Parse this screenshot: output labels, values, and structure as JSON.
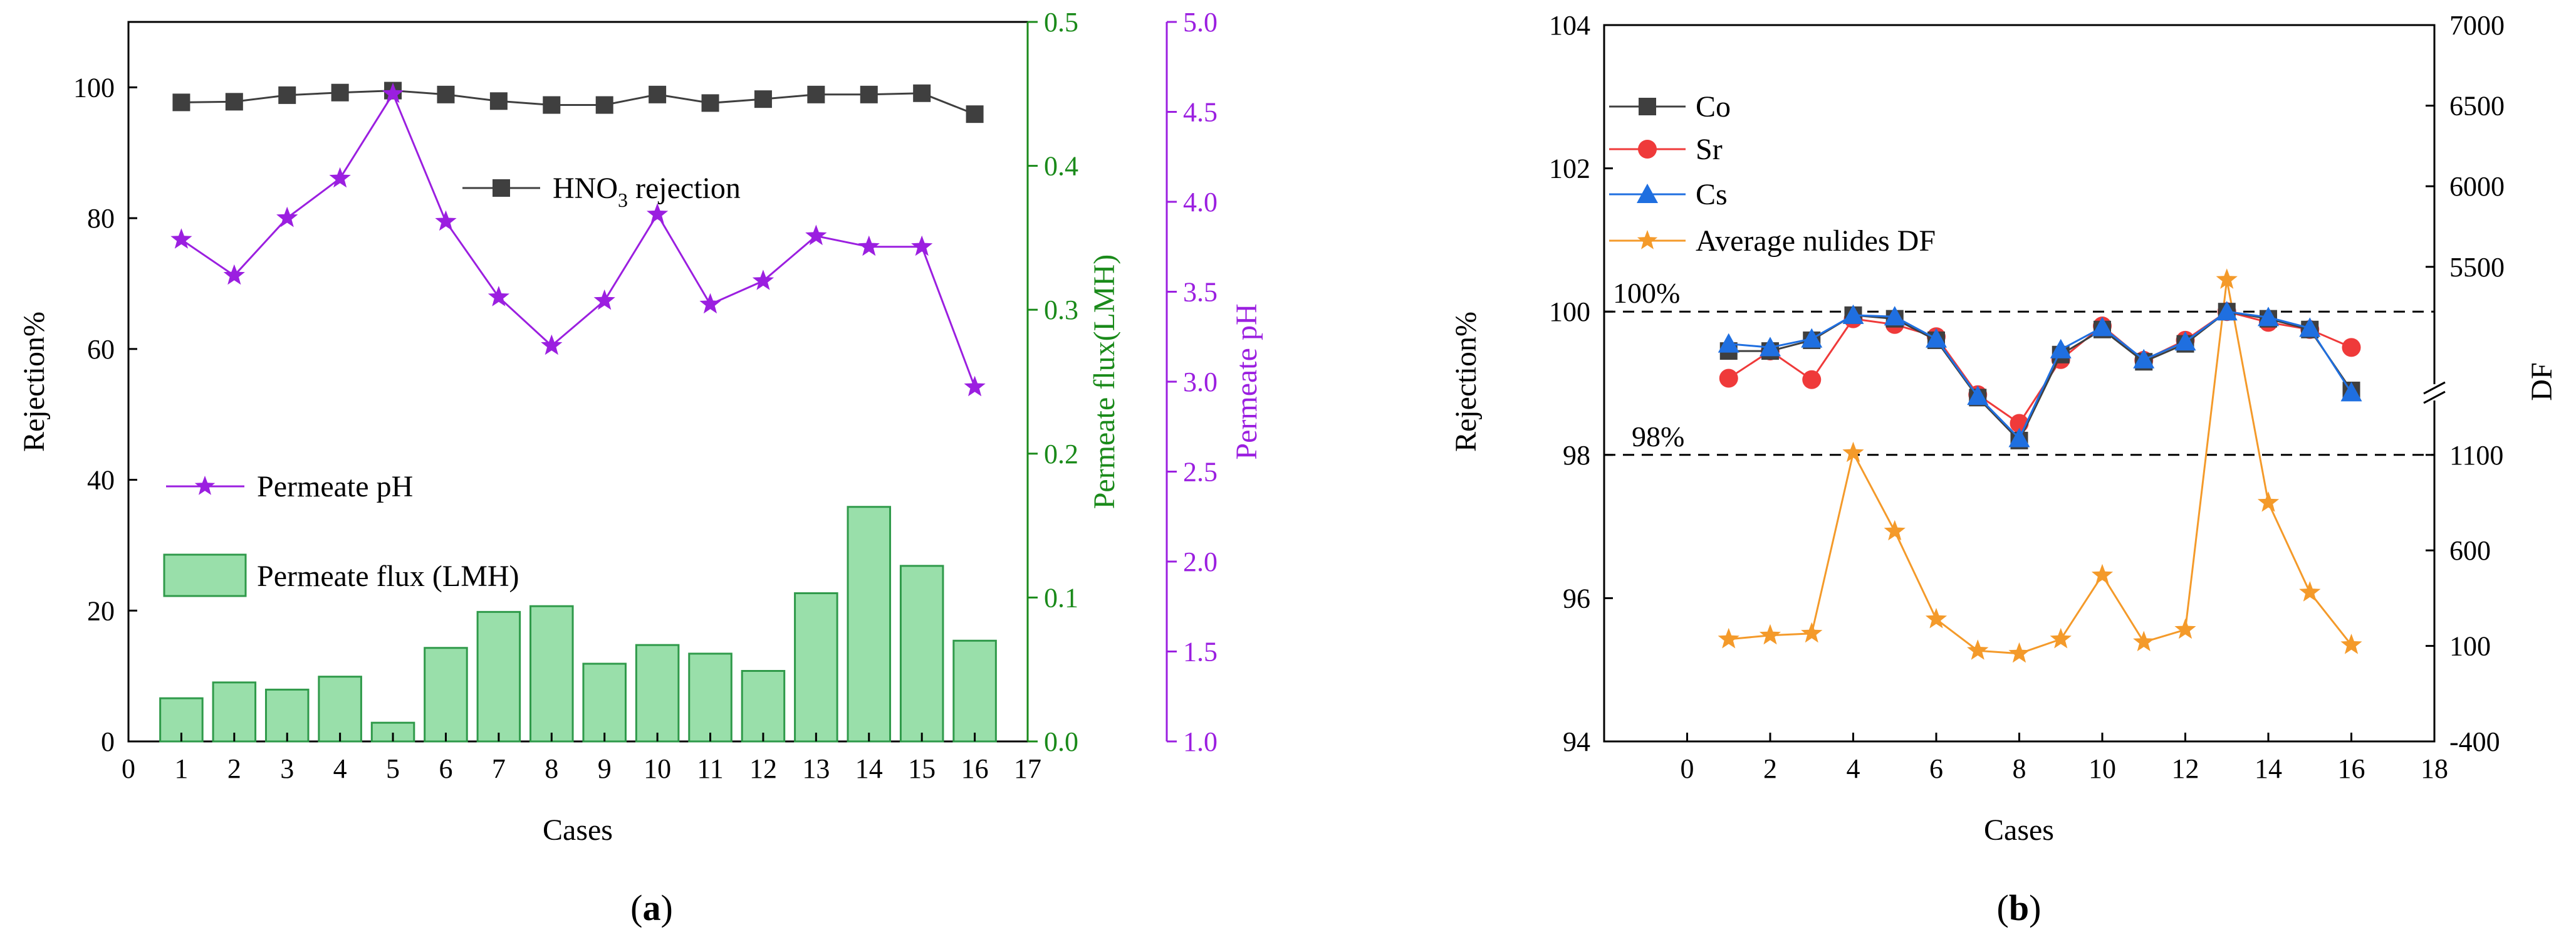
{
  "chart_data": [
    {
      "panel_label": "(a)",
      "type": "bar+line",
      "xlabel": "Cases",
      "x_ticks": [
        "0",
        "1",
        "2",
        "3",
        "4",
        "5",
        "6",
        "7",
        "8",
        "9",
        "10",
        "11",
        "12",
        "13",
        "14",
        "15",
        "16",
        "17"
      ],
      "xlim": [
        0,
        17
      ],
      "categories": [
        1,
        2,
        3,
        4,
        5,
        6,
        7,
        8,
        9,
        10,
        11,
        12,
        13,
        14,
        15,
        16
      ],
      "axes": {
        "left": {
          "label": "Rejection%",
          "range": [
            0,
            110
          ],
          "ticks": [
            0,
            20,
            40,
            60,
            80,
            100
          ],
          "color": "#000000"
        },
        "right1": {
          "label": "Permeate flux(LMH)",
          "range": [
            0,
            0.5
          ],
          "ticks": [
            "0.0",
            "0.1",
            "0.2",
            "0.3",
            "0.4",
            "0.5"
          ],
          "color": "#1a8a1a"
        },
        "right2": {
          "label": "Permeate pH",
          "range": [
            1.0,
            5.0
          ],
          "ticks": [
            "1.0",
            "1.5",
            "2.0",
            "2.5",
            "3.0",
            "3.5",
            "4.0",
            "4.5",
            "5.0"
          ],
          "color": "#9b1fe0"
        }
      },
      "series": [
        {
          "name": "HNO3 rejection",
          "legend_main": "HNO",
          "legend_sub": "3",
          "legend_rest": " rejection",
          "type": "line",
          "marker": "square",
          "color": "#3f3f3f",
          "axis": "left",
          "values": [
            97.7,
            97.8,
            98.8,
            99.2,
            99.5,
            98.9,
            97.9,
            97.3,
            97.3,
            98.9,
            97.6,
            98.2,
            98.9,
            98.9,
            99.1,
            95.9
          ]
        },
        {
          "name": "Permeate pH",
          "type": "line",
          "marker": "star",
          "color": "#9b1fe0",
          "axis": "right2",
          "values": [
            3.79,
            3.59,
            3.91,
            4.13,
            4.6,
            3.89,
            3.47,
            3.2,
            3.45,
            3.93,
            3.43,
            3.56,
            3.81,
            3.75,
            3.75,
            2.97
          ]
        },
        {
          "name": "Permeate flux (LMH)",
          "type": "bar",
          "color": "#99dfaa",
          "edge": "#2f9a4a",
          "axis": "right1",
          "values": [
            0.03,
            0.041,
            0.036,
            0.045,
            0.013,
            0.065,
            0.09,
            0.094,
            0.054,
            0.067,
            0.061,
            0.049,
            0.103,
            0.163,
            0.122,
            0.07
          ]
        }
      ]
    },
    {
      "panel_label": "(b)",
      "type": "line",
      "xlabel": "Cases",
      "x_ticks": [
        "0",
        "2",
        "4",
        "6",
        "8",
        "10",
        "12",
        "14",
        "16",
        "18"
      ],
      "xlim": [
        -2,
        18
      ],
      "x": [
        1,
        2,
        3,
        4,
        5,
        6,
        7,
        8,
        9,
        10,
        11,
        12,
        13,
        14,
        15,
        16
      ],
      "axes": {
        "left": {
          "label": "Rejection%",
          "range": [
            94,
            104
          ],
          "ticks": [
            "94",
            "96",
            "98",
            "100",
            "102",
            "104"
          ]
        },
        "right": {
          "label": "DF",
          "note": "broken axis",
          "lower_range": [
            -400,
            1100
          ],
          "lower_ticks": [
            "-400",
            "100",
            "600",
            "1100"
          ],
          "upper_range": [
            5000,
            7000
          ],
          "upper_ticks": [
            "5500",
            "6000",
            "6500",
            "7000"
          ]
        }
      },
      "reference_lines": [
        {
          "value": 100,
          "label": "100%"
        },
        {
          "value": 98,
          "label": "98%"
        }
      ],
      "series": [
        {
          "name": "Co",
          "marker": "square",
          "color": "#3f3f3f",
          "axis": "left",
          "values": [
            99.45,
            99.45,
            99.6,
            99.95,
            99.9,
            99.6,
            98.8,
            98.2,
            99.4,
            99.75,
            99.3,
            99.55,
            100.0,
            99.9,
            99.75,
            98.9
          ]
        },
        {
          "name": "Sr",
          "marker": "circle",
          "color": "#ef3a3a",
          "axis": "left",
          "values": [
            99.07,
            99.45,
            99.05,
            99.9,
            99.82,
            99.65,
            98.84,
            98.44,
            99.33,
            99.8,
            99.32,
            99.6,
            100.0,
            99.85,
            99.75,
            99.5
          ]
        },
        {
          "name": "Cs",
          "marker": "triangle",
          "color": "#1f6fe0",
          "axis": "left",
          "values": [
            99.55,
            99.5,
            99.62,
            99.95,
            99.93,
            99.62,
            98.82,
            98.23,
            99.47,
            99.78,
            99.33,
            99.58,
            100.0,
            99.92,
            99.77,
            98.87
          ]
        },
        {
          "name": "Average nulides DF",
          "marker": "star",
          "color": "#f49a2a",
          "axis": "right",
          "values": [
            135,
            155,
            165,
            1110,
            700,
            240,
            75,
            60,
            135,
            470,
            120,
            185,
            5420,
            850,
            380,
            105
          ]
        }
      ]
    }
  ]
}
